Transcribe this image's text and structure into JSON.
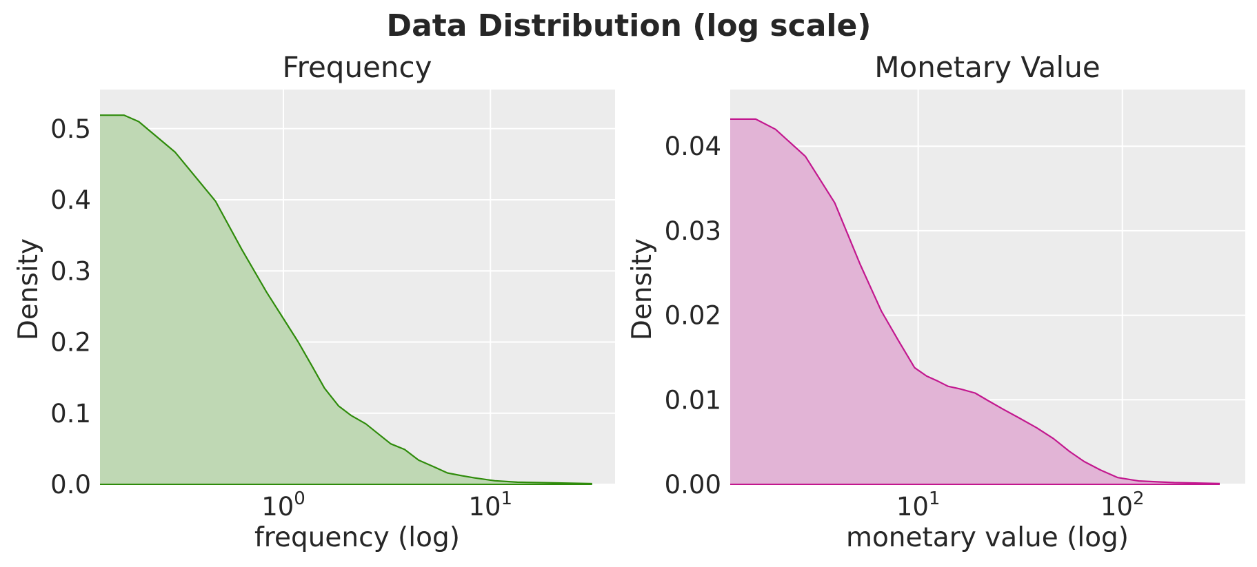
{
  "figure": {
    "title": "Data Distribution (log scale)"
  },
  "chart_data": [
    {
      "type": "area",
      "title": "Frequency",
      "xlabel": "frequency (log)",
      "ylabel": "Density",
      "x_scale": "log",
      "xlim": [
        0.13,
        40
      ],
      "ylim": [
        0,
        0.555
      ],
      "x_ticks": [
        {
          "value": 1,
          "base": "10",
          "exp": "0"
        },
        {
          "value": 10,
          "base": "10",
          "exp": "1"
        }
      ],
      "y_ticks": [
        {
          "value": 0.0,
          "label": "0.0"
        },
        {
          "value": 0.1,
          "label": "0.1"
        },
        {
          "value": 0.2,
          "label": "0.2"
        },
        {
          "value": 0.3,
          "label": "0.3"
        },
        {
          "value": 0.4,
          "label": "0.4"
        },
        {
          "value": 0.5,
          "label": "0.5"
        }
      ],
      "grid": true,
      "colors": {
        "line": "#2e8b0a",
        "fill": "#bfd8b4",
        "background": "#ececec"
      },
      "series": [
        {
          "x": [
            0.13,
            0.17,
            0.2,
            0.3,
            0.47,
            0.63,
            0.83,
            1.0,
            1.18,
            1.37,
            1.58,
            1.85,
            2.12,
            2.5,
            2.9,
            3.3,
            3.85,
            4.5,
            5.3,
            6.2,
            7.3,
            8.4,
            10.5,
            13.5,
            20,
            31
          ],
          "y": [
            0.519,
            0.519,
            0.51,
            0.467,
            0.398,
            0.33,
            0.27,
            0.233,
            0.2,
            0.167,
            0.135,
            0.11,
            0.097,
            0.085,
            0.07,
            0.057,
            0.049,
            0.034,
            0.025,
            0.016,
            0.012,
            0.009,
            0.005,
            0.003,
            0.002,
            0.001
          ]
        }
      ]
    },
    {
      "type": "area",
      "title": "Monetary Value",
      "xlabel": "monetary value (log)",
      "ylabel": "Density",
      "x_scale": "log",
      "xlim": [
        1.2,
        400
      ],
      "ylim": [
        0,
        0.0467
      ],
      "x_ticks": [
        {
          "value": 10,
          "base": "10",
          "exp": "1"
        },
        {
          "value": 100,
          "base": "10",
          "exp": "2"
        }
      ],
      "y_ticks": [
        {
          "value": 0.0,
          "label": "0.00"
        },
        {
          "value": 0.01,
          "label": "0.01"
        },
        {
          "value": 0.02,
          "label": "0.02"
        },
        {
          "value": 0.03,
          "label": "0.03"
        },
        {
          "value": 0.04,
          "label": "0.04"
        }
      ],
      "grid": true,
      "colors": {
        "line": "#c2178e",
        "fill": "#e2b4d6",
        "background": "#ececec"
      },
      "series": [
        {
          "x": [
            1.2,
            1.6,
            2.0,
            2.8,
            3.9,
            5.2,
            6.6,
            8.0,
            9.6,
            11.0,
            12.5,
            14.0,
            16.0,
            19.0,
            22.0,
            26.0,
            31.0,
            38.0,
            46.0,
            55.0,
            65.0,
            78.0,
            95.0,
            120.0,
            180.0,
            300.0
          ],
          "y": [
            0.0432,
            0.0432,
            0.042,
            0.0388,
            0.0333,
            0.026,
            0.0205,
            0.017,
            0.0138,
            0.0128,
            0.0122,
            0.0116,
            0.0113,
            0.0108,
            0.0099,
            0.0089,
            0.0079,
            0.0067,
            0.0054,
            0.0039,
            0.0027,
            0.0017,
            0.0008,
            0.0004,
            0.0002,
            0.0001
          ]
        }
      ]
    }
  ]
}
